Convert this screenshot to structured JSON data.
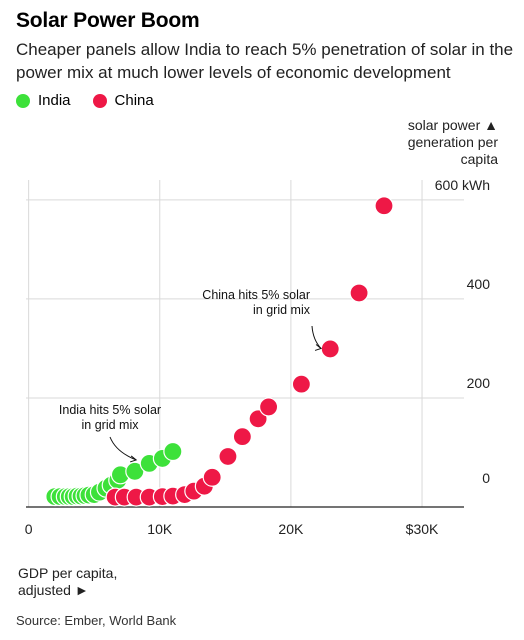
{
  "title": "Solar Power Boom",
  "subtitle": "Cheaper panels allow India to reach 5% penetration of solar in the power mix at much lower levels of economic development",
  "source": "Source: Ember, World Bank",
  "colors": {
    "india": "#3de13a",
    "china": "#ee1846",
    "grid": "#d9d9d9",
    "axis": "#222222"
  },
  "chart_data": {
    "type": "scatter",
    "title": "Solar Power Boom",
    "xlabel": [
      "GDP per capita,",
      "adjusted ►"
    ],
    "ylabel": [
      "solar power ▲",
      "generation per",
      "capita"
    ],
    "xlim": [
      -0.2,
      33.2
    ],
    "ylim": [
      -20,
      640
    ],
    "x_ticks": [
      {
        "value": 0,
        "label": "0"
      },
      {
        "value": 10,
        "label": "10K"
      },
      {
        "value": 20,
        "label": "20K"
      },
      {
        "value": 30,
        "label": "$30K"
      }
    ],
    "y_ticks": [
      {
        "value": 0,
        "label": "0"
      },
      {
        "value": 200,
        "label": "200"
      },
      {
        "value": 400,
        "label": "400"
      },
      {
        "value": 600,
        "label": "600 kWh"
      }
    ],
    "legend": "top-left",
    "series": [
      {
        "name": "India",
        "color": "#3de13a",
        "points": [
          {
            "x": 2.0,
            "y": 1
          },
          {
            "x": 2.4,
            "y": 1
          },
          {
            "x": 2.8,
            "y": 1
          },
          {
            "x": 3.1,
            "y": 1
          },
          {
            "x": 3.4,
            "y": 1
          },
          {
            "x": 3.7,
            "y": 2
          },
          {
            "x": 4.0,
            "y": 2
          },
          {
            "x": 4.3,
            "y": 3
          },
          {
            "x": 4.6,
            "y": 4
          },
          {
            "x": 5.0,
            "y": 5
          },
          {
            "x": 5.4,
            "y": 10
          },
          {
            "x": 5.9,
            "y": 18
          },
          {
            "x": 6.3,
            "y": 24
          },
          {
            "x": 6.8,
            "y": 34
          },
          {
            "x": 7.0,
            "y": 45
          },
          {
            "x": 8.1,
            "y": 52
          },
          {
            "x": 9.2,
            "y": 68
          },
          {
            "x": 10.2,
            "y": 78
          },
          {
            "x": 11.0,
            "y": 92
          }
        ]
      },
      {
        "name": "China",
        "color": "#ee1846",
        "points": [
          {
            "x": 6.6,
            "y": 0
          },
          {
            "x": 7.3,
            "y": 0
          },
          {
            "x": 8.2,
            "y": 0
          },
          {
            "x": 9.2,
            "y": 0
          },
          {
            "x": 10.2,
            "y": 1
          },
          {
            "x": 11.0,
            "y": 2
          },
          {
            "x": 11.9,
            "y": 5
          },
          {
            "x": 12.6,
            "y": 12
          },
          {
            "x": 13.4,
            "y": 22
          },
          {
            "x": 14.0,
            "y": 40
          },
          {
            "x": 15.2,
            "y": 82
          },
          {
            "x": 16.3,
            "y": 122
          },
          {
            "x": 17.5,
            "y": 158
          },
          {
            "x": 18.3,
            "y": 182
          },
          {
            "x": 20.8,
            "y": 228
          },
          {
            "x": 23.0,
            "y": 299
          },
          {
            "x": 25.2,
            "y": 412
          },
          {
            "x": 27.1,
            "y": 588
          }
        ]
      }
    ],
    "annotations": [
      {
        "lines": [
          "India hits 5% solar",
          "in grid mix"
        ],
        "target": {
          "x": 8.2,
          "y": 75
        }
      },
      {
        "lines": [
          "China hits 5% solar",
          "in grid mix"
        ],
        "target": {
          "x": 22.3,
          "y": 300
        }
      }
    ]
  }
}
